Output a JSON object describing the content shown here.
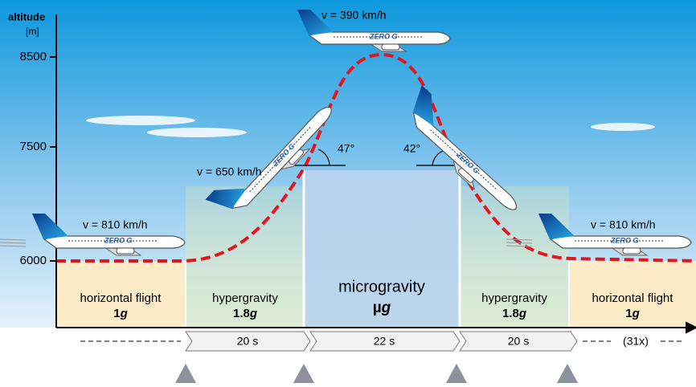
{
  "axis": {
    "title": "altitude",
    "unit": "[m]",
    "ticks": [
      "8500",
      "7500",
      "6000"
    ]
  },
  "phases": [
    {
      "name": "horizontal flight",
      "factor": "1",
      "symbol": "g"
    },
    {
      "name": "hypergravity",
      "factor": "1.8",
      "symbol": "g"
    },
    {
      "name": "microgravity",
      "factor": "µ",
      "symbol": "g"
    },
    {
      "name": "hypergravity",
      "factor": "1.8",
      "symbol": "g"
    },
    {
      "name": "horizontal flight",
      "factor": "1",
      "symbol": "g"
    }
  ],
  "durations": [
    "20 s",
    "22 s",
    "20 s"
  ],
  "repeat": "(31x)",
  "speeds": [
    "v = 390 km/h",
    "v = 650 km/h",
    "v = 810 km/h",
    "v = 810 km/h"
  ],
  "angles": [
    "47°",
    "42°"
  ],
  "logo": "ZERO G"
}
